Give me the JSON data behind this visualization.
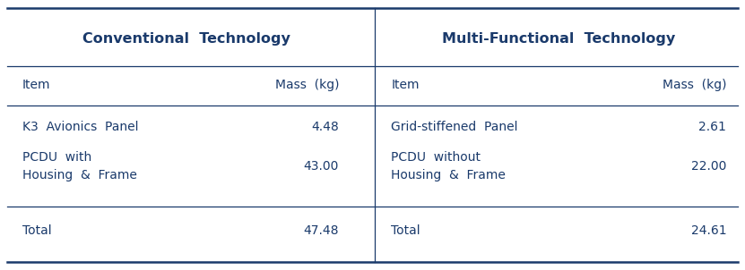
{
  "title_left": "Conventional  Technology",
  "title_right": "Multi-Functional  Technology",
  "col_header_left_item": "Item",
  "col_header_left_mass": "Mass  (kg)",
  "col_header_right_item": "Item",
  "col_header_right_mass": "Mass  (kg)",
  "rows": [
    {
      "left_item": "K3  Avionics  Panel",
      "left_mass": "4.48",
      "right_item": "Grid-stiffened  Panel",
      "right_mass": "2.61"
    },
    {
      "left_item": "PCDU  with\nHousing  &  Frame",
      "left_mass": "43.00",
      "right_item": "PCDU  without\nHousing  &  Frame",
      "right_mass": "22.00"
    }
  ],
  "total_left_label": "Total",
  "total_left_mass": "47.48",
  "total_right_label": "Total",
  "total_right_mass": "24.61",
  "bg_color": "#ffffff",
  "text_color": "#1a3a6b",
  "line_color": "#1a3a6b",
  "title_fontsize": 11.5,
  "body_fontsize": 10,
  "fig_width": 8.31,
  "fig_height": 3.02
}
